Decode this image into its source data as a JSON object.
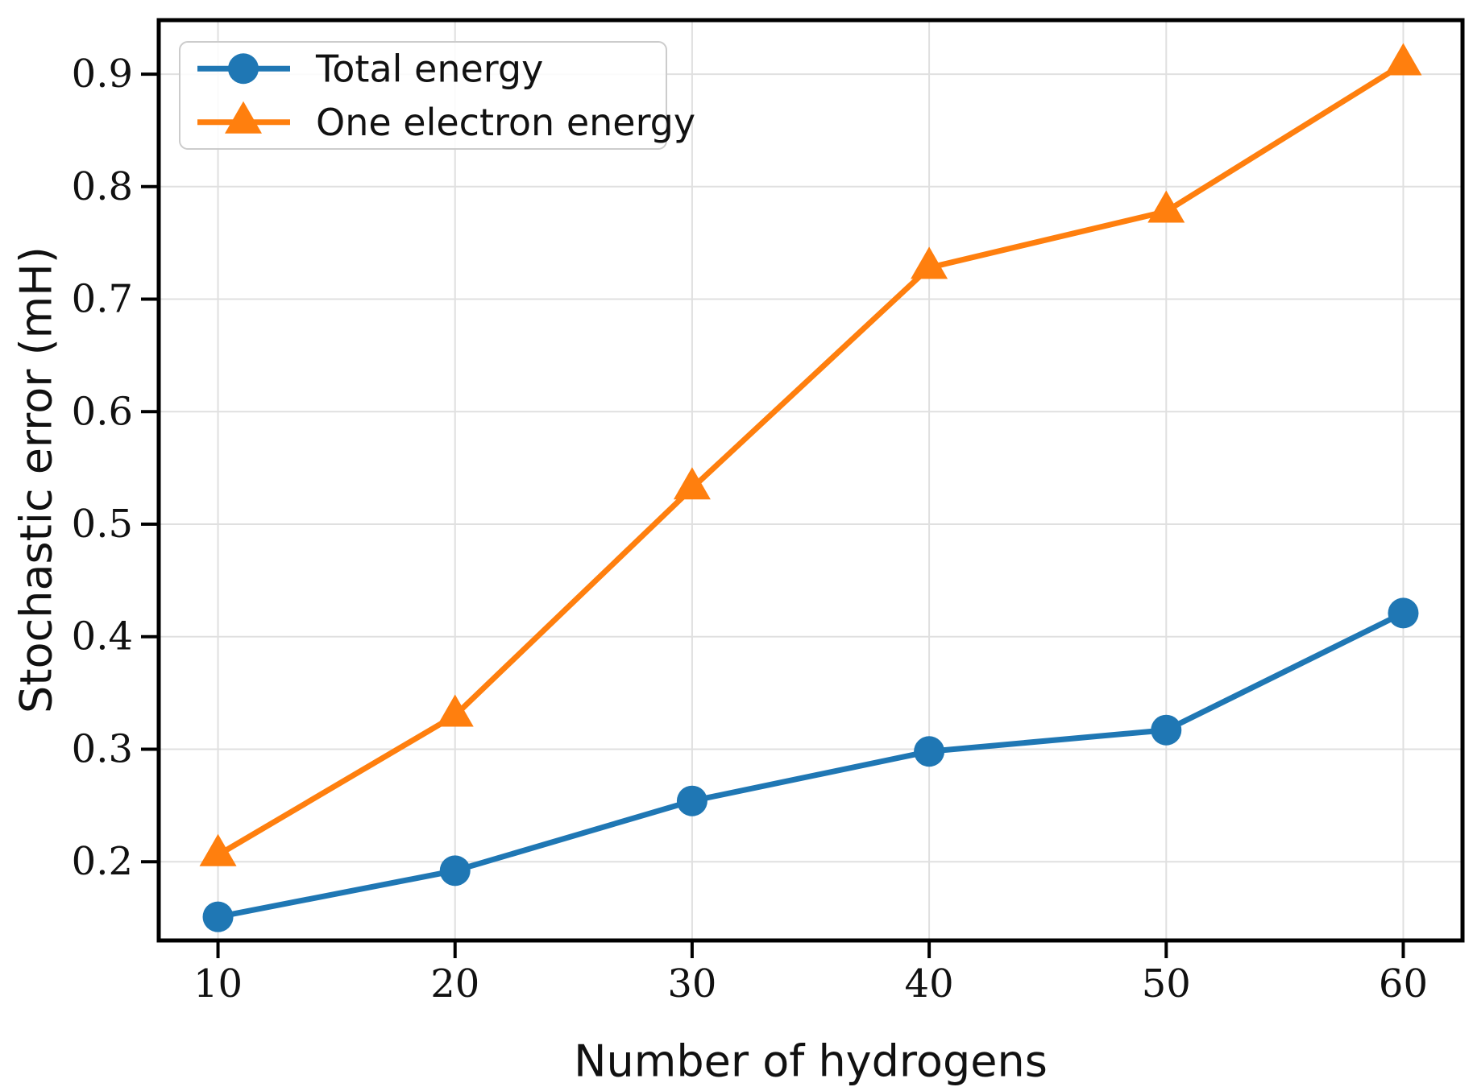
{
  "chart_data": {
    "type": "line",
    "title": "",
    "xlabel": "Number of hydrogens",
    "ylabel": "Stochastic error (mH)",
    "x": [
      10,
      20,
      30,
      40,
      50,
      60
    ],
    "series": [
      {
        "name": "Total energy",
        "marker": "circle",
        "color": "#1f77b4",
        "values": [
          0.151,
          0.192,
          0.254,
          0.298,
          0.317,
          0.421
        ]
      },
      {
        "name": "One electron energy",
        "marker": "triangle",
        "color": "#ff7f0e",
        "values": [
          0.206,
          0.33,
          0.532,
          0.728,
          0.778,
          0.909
        ]
      }
    ],
    "xticks": [
      10,
      20,
      30,
      40,
      50,
      60
    ],
    "yticks": [
      0.2,
      0.3,
      0.4,
      0.5,
      0.6,
      0.7,
      0.8,
      0.9
    ],
    "xtick_labels": [
      "10",
      "20",
      "30",
      "40",
      "50",
      "60"
    ],
    "ytick_labels": [
      "0.2",
      "0.3",
      "0.4",
      "0.5",
      "0.6",
      "0.7",
      "0.8",
      "0.9"
    ],
    "xlim": [
      7.5,
      62.5
    ],
    "ylim": [
      0.13,
      0.948
    ],
    "grid": true,
    "legend_position": "upper-left",
    "colors": {
      "series_blue": "#1f77b4",
      "series_orange": "#ff7f0e",
      "grid": "#e0e0e0",
      "spine": "#000000",
      "text": "#111111",
      "legend_border": "#cccccc",
      "legend_background": "#ffffff"
    }
  }
}
